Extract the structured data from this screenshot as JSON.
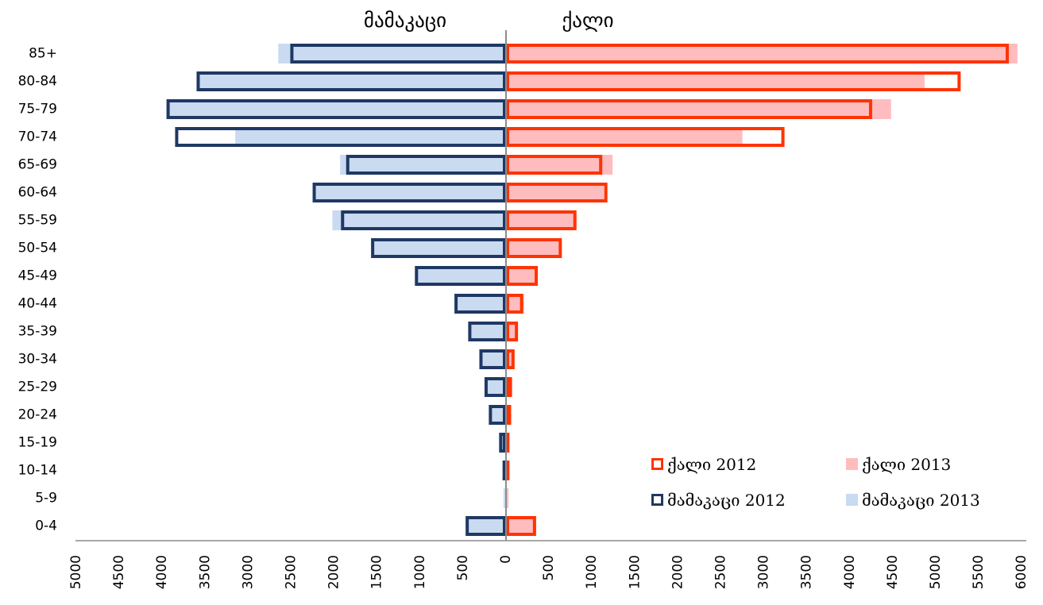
{
  "chart_data": {
    "type": "bar",
    "orientation": "horizontal",
    "subtype": "population-pyramid",
    "titles": {
      "left": "მამაკაცი",
      "right": "ქალი"
    },
    "categories": [
      "0-4",
      "5-9",
      "10-14",
      "15-19",
      "20-24",
      "25-29",
      "30-34",
      "35-39",
      "40-44",
      "45-49",
      "50-54",
      "55-59",
      "60-64",
      "65-69",
      "70-74",
      "75-79",
      "80-84",
      "85+"
    ],
    "series": [
      {
        "name": "მამაკაცი 2013",
        "side": "left",
        "style": "filled",
        "color": "#c9daf1",
        "values": [
          450,
          30,
          40,
          80,
          190,
          240,
          290,
          420,
          570,
          1060,
          1570,
          2020,
          2240,
          1930,
          3150,
          3950,
          3600,
          2650
        ]
      },
      {
        "name": "მამაკაცი 2012",
        "side": "left",
        "style": "outline",
        "color": "#1f3864",
        "values": [
          470,
          20,
          40,
          80,
          200,
          250,
          310,
          440,
          600,
          1060,
          1570,
          1920,
          2250,
          1860,
          3850,
          3950,
          3600,
          2510
        ]
      },
      {
        "name": "ქალი 2013",
        "side": "right",
        "style": "filled",
        "color": "#ffbcbf",
        "values": [
          350,
          30,
          40,
          40,
          50,
          70,
          90,
          120,
          210,
          360,
          630,
          790,
          1140,
          1240,
          2750,
          4480,
          4870,
          5950
        ]
      },
      {
        "name": "ქალი 2012",
        "side": "right",
        "style": "outline",
        "color": "#ff3300",
        "values": [
          350,
          30,
          40,
          40,
          60,
          70,
          100,
          140,
          200,
          370,
          650,
          820,
          1180,
          1120,
          3240,
          4260,
          5290,
          5850
        ]
      }
    ],
    "xaxis": {
      "ticks": [
        "5000",
        "4500",
        "4000",
        "3500",
        "3000",
        "2500",
        "2000",
        "1500",
        "1000",
        "500",
        "0",
        "500",
        "1000",
        "1500",
        "2000",
        "2500",
        "3000",
        "3500",
        "4000",
        "4500",
        "5000",
        "5500",
        "6000"
      ],
      "tick_values": [
        -5000,
        -4500,
        -4000,
        -3500,
        -3000,
        -2500,
        -2000,
        -1500,
        -1000,
        -500,
        0,
        500,
        1000,
        1500,
        2000,
        2500,
        3000,
        3500,
        4000,
        4500,
        5000,
        5500,
        6000
      ],
      "range": [
        -5000,
        6000
      ],
      "label_rotation": "vertical"
    },
    "legend": {
      "placement": "bottom-right",
      "items": [
        {
          "label": "ქალი 2012",
          "series": "ქალი 2012"
        },
        {
          "label": "ქალი 2013",
          "series": "ქალი 2013"
        },
        {
          "label": "მამაკაცი 2012",
          "series": "მამაკაცი 2012"
        },
        {
          "label": "მამაკაცი 2013",
          "series": "მამაკაცი 2013"
        }
      ]
    },
    "grid": false
  }
}
